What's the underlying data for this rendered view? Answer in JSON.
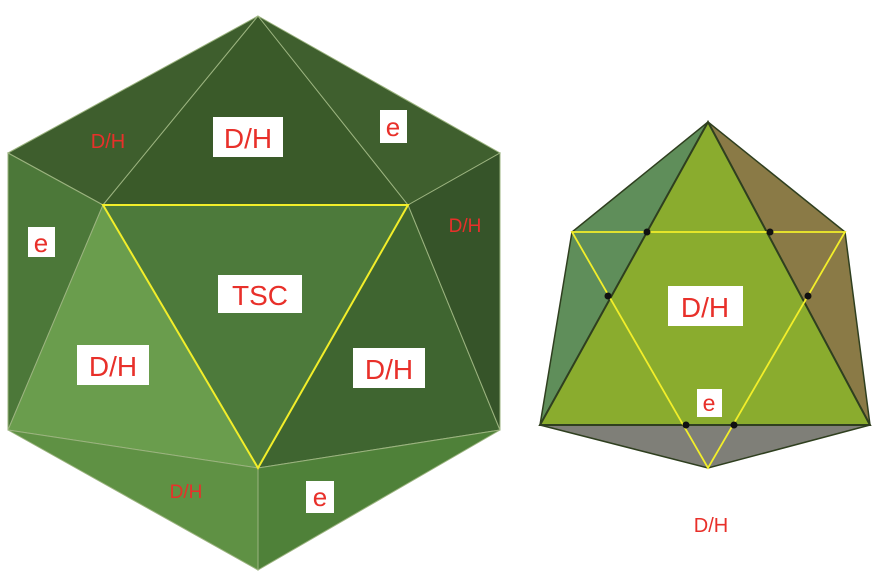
{
  "colors": {
    "edge_highlight": "#f2ee2a",
    "label_text": "#e8302a",
    "label_box": "#ffffff",
    "icosahedron_faces": [
      "#3f5f2f",
      "#466a34",
      "#4e7a3b",
      "#5a8a43",
      "#6a9e4e",
      "#3a5a2a"
    ],
    "octahedron_faces": [
      "#8aac2e",
      "#5f8e5a",
      "#8a7a46",
      "#7f7f78"
    ]
  },
  "left_figure": {
    "labels": {
      "top_left": "D/H",
      "top_center": "D/H",
      "top_right": "e",
      "right_upper": "D/H",
      "left_upper": "e",
      "center": "TSC",
      "left_lower": "D/H",
      "right_lower": "D/H",
      "bottom_left": "D/H",
      "bottom_right": "e"
    }
  },
  "right_figure": {
    "labels": {
      "center": "D/H",
      "lower": "e",
      "below": "D/H"
    }
  }
}
